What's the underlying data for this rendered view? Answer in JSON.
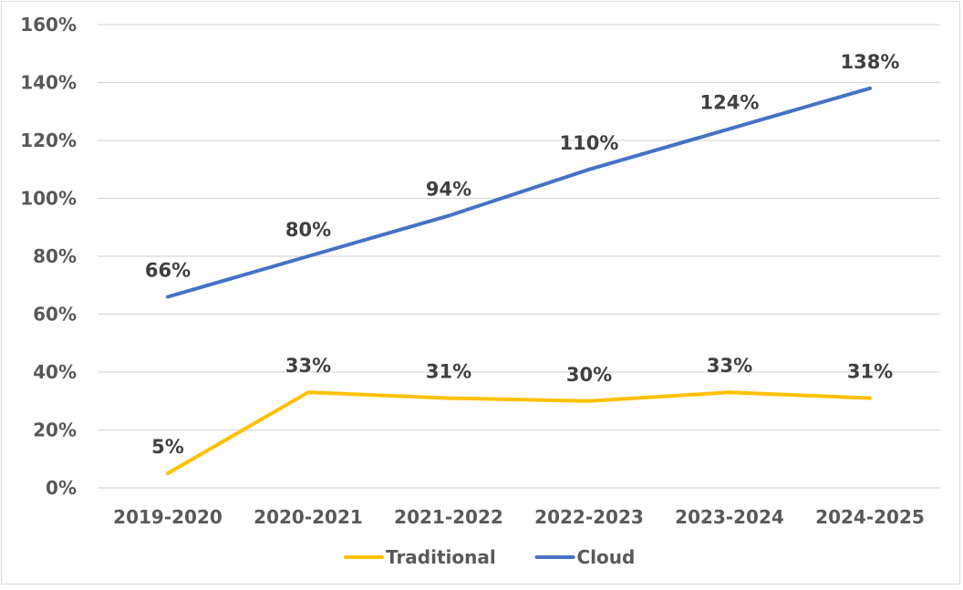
{
  "chart_data": {
    "type": "line",
    "title": "",
    "xlabel": "",
    "ylabel": "",
    "categories": [
      "2019-2020",
      "2020-2021",
      "2021-2022",
      "2022-2023",
      "2023-2024",
      "2024-2025"
    ],
    "ylim": [
      0,
      160
    ],
    "yticks": [
      0,
      20,
      40,
      60,
      80,
      100,
      120,
      140,
      160
    ],
    "ytick_labels": [
      "0%",
      "20%",
      "40%",
      "60%",
      "80%",
      "100%",
      "120%",
      "140%",
      "160%"
    ],
    "grid": true,
    "legend_position": "bottom",
    "series": [
      {
        "name": "Traditional",
        "color": "#FFC000",
        "values": [
          5,
          33,
          31,
          30,
          33,
          31
        ],
        "labels": [
          "5%",
          "33%",
          "31%",
          "30%",
          "33%",
          "31%"
        ]
      },
      {
        "name": "Cloud",
        "color": "#4472C4",
        "values": [
          66,
          80,
          94,
          110,
          124,
          138
        ],
        "labels": [
          "66%",
          "80%",
          "94%",
          "110%",
          "124%",
          "138%"
        ]
      }
    ]
  }
}
